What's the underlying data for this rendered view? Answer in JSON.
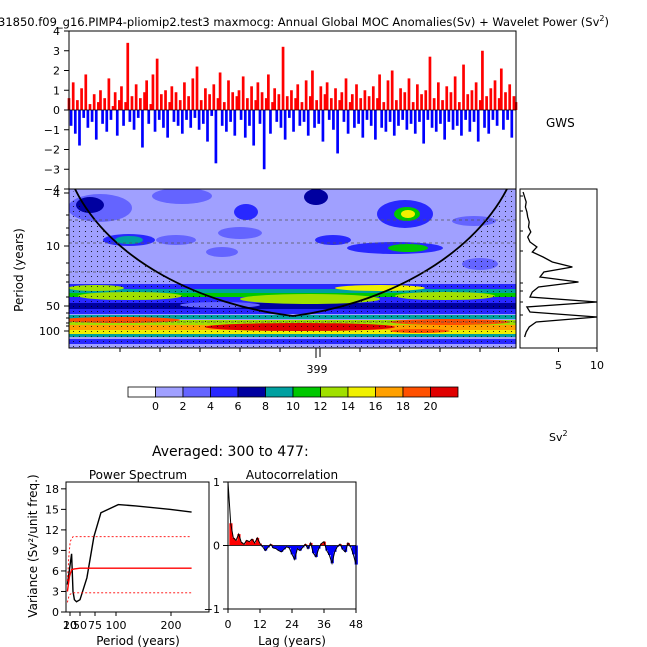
{
  "title": "31850.f09_g16.PIMP4-pliomip2.test3 maxmocg: Annual Global MOC Anomalies(Sv) + Wavelet Power (Sv",
  "title_sup": "2",
  "title_tail": ")",
  "gws_label": "GWS",
  "sv2_label": "Sv",
  "sv2_sup": "2",
  "averaged_label": "Averaged: 300 to 477:",
  "colors": {
    "positive": "#ff0000",
    "negative": "#0000ff"
  },
  "chart_data": [
    {
      "type": "area",
      "name": "timeseries",
      "ylim": [
        -4,
        4
      ],
      "yticks": [
        4,
        3,
        2,
        1,
        0,
        -1,
        -2,
        -3,
        -4
      ],
      "values": [
        0.6,
        -0.8,
        1.4,
        -1.2,
        0.5,
        -1.8,
        1.1,
        -0.4,
        1.8,
        -0.9,
        0.3,
        -0.6,
        0.8,
        -1.5,
        0.4,
        1.0,
        -0.7,
        0.6,
        -1.1,
        1.6,
        -0.5,
        0.2,
        0.9,
        -1.3,
        0.5,
        1.2,
        -0.8,
        0.4,
        3.4,
        -0.6,
        0.7,
        -1.0,
        1.3,
        -0.4,
        0.6,
        -1.9,
        0.9,
        1.5,
        -0.7,
        0.3,
        1.8,
        -1.1,
        2.6,
        -0.5,
        0.8,
        -0.9,
        1.0,
        -1.4,
        0.4,
        1.2,
        -0.6,
        0.9,
        -0.8,
        0.5,
        -1.2,
        1.4,
        -0.5,
        0.7,
        -0.9,
        1.6,
        -0.4,
        2.2,
        -1.0,
        0.5,
        -0.7,
        1.1,
        -1.6,
        0.8,
        -0.3,
        1.3,
        -2.7,
        0.6,
        1.9,
        -0.8,
        0.4,
        -1.1,
        1.5,
        -0.6,
        0.9,
        -1.3,
        0.7,
        1.0,
        -0.5,
        1.7,
        -1.4,
        0.6,
        -0.8,
        1.2,
        -1.8,
        0.5,
        1.4,
        -0.7,
        0.9,
        -3.0,
        0.6,
        1.8,
        -1.2,
        0.4,
        1.1,
        -0.6,
        0.8,
        -0.9,
        3.2,
        -1.5,
        0.7,
        -0.4,
        1.0,
        -1.1,
        0.6,
        1.3,
        -0.8,
        0.4,
        -0.6,
        1.5,
        -1.3,
        0.7,
        2.0,
        -0.9,
        0.5,
        -0.7,
        1.2,
        -1.6,
        0.8,
        1.4,
        -0.5,
        0.6,
        -1.0,
        1.1,
        -2.2,
        0.5,
        0.9,
        -0.6,
        1.6,
        -1.2,
        0.4,
        0.8,
        -0.9,
        1.3,
        -0.7,
        0.6,
        -1.4,
        1.0,
        -0.5,
        0.7,
        -0.8,
        1.2,
        -1.5,
        0.6,
        1.8,
        -0.9,
        0.4,
        -1.1,
        1.5,
        -0.6,
        2.0,
        -1.3,
        0.5,
        -0.8,
        1.1,
        -0.5,
        0.9,
        -1.0,
        1.6,
        -0.7,
        0.4,
        -1.2,
        1.3,
        -0.6,
        0.8,
        -1.7,
        1.0,
        -0.5,
        2.7,
        -0.9,
        0.6,
        -1.1,
        1.4,
        -0.7,
        0.5,
        -1.5,
        1.2,
        -0.6,
        0.9,
        -1.0,
        1.7,
        -0.8,
        0.4,
        -1.3,
        2.3,
        -0.5,
        0.8,
        -1.1,
        1.0,
        -0.6,
        1.4,
        -1.6,
        0.5,
        3.0,
        -0.9,
        0.7,
        -1.2,
        1.1,
        -0.5,
        1.5,
        -0.8,
        0.6,
        2.1,
        -1.0,
        0.9,
        -0.5,
        1.3,
        -1.4,
        0.7,
        0.4
      ]
    },
    {
      "type": "heatmap",
      "name": "wavelet_power",
      "x_tick_labels": [
        "399"
      ],
      "y_tick_labels": [
        "4",
        "10",
        "50",
        "100"
      ],
      "ylabel": "Period (years)",
      "yscale": "log",
      "colorbar_labels": [
        "0",
        "2",
        "4",
        "6",
        "8",
        "10",
        "12",
        "14",
        "16",
        "18",
        "20"
      ],
      "colorbar_colors": [
        "#ffffff",
        "#a0a0ff",
        "#6464ff",
        "#2828ff",
        "#0000a0",
        "#00a0a0",
        "#00c800",
        "#a0e000",
        "#f0f000",
        "#ffa000",
        "#ff5000",
        "#e00000"
      ]
    },
    {
      "type": "line",
      "name": "global_wavelet_spectrum",
      "x_tick_labels": [
        "5",
        "10"
      ],
      "xlim": [
        0,
        10
      ],
      "power": [
        0.4,
        0.6,
        0.8,
        0.7,
        0.9,
        1.0,
        1.2,
        1.1,
        1.4,
        1.0,
        1.3,
        2.2,
        1.6,
        3.0,
        4.2,
        6.8,
        3.1,
        2.6,
        7.6,
        2.4,
        1.6,
        1.3,
        10.0,
        0.9,
        1.3,
        10.0,
        2.1,
        1.2,
        0.8,
        0.6
      ]
    },
    {
      "type": "line",
      "name": "power_spectrum",
      "title": "Power Spectrum",
      "xlabel": "Period (years)",
      "ylabel": "Variance (Sv²/unit freq.)",
      "x_tick_labels": [
        "20",
        "10",
        "50",
        "75",
        "100",
        "200"
      ],
      "y_tick_labels": [
        "0",
        "3",
        "6",
        "9",
        "12",
        "15",
        "18"
      ],
      "ylim": [
        0,
        19
      ],
      "series": [
        {
          "x": [
            2,
            8,
            10,
            12,
            15,
            20,
            30,
            40,
            50,
            75,
            100,
            150,
            180
          ],
          "y": [
            4.0,
            8.5,
            3.0,
            1.8,
            1.5,
            1.8,
            5.0,
            11.0,
            14.5,
            15.7,
            15.5,
            15.0,
            14.6
          ]
        },
        {
          "x": [
            2,
            5,
            8,
            12,
            20,
            40,
            100,
            180
          ],
          "y": [
            3.0,
            5.2,
            6.2,
            6.3,
            6.4,
            6.4,
            6.4,
            6.4
          ]
        },
        {
          "x": [
            2,
            4,
            6,
            10,
            20,
            40,
            100,
            180
          ],
          "y": [
            4.5,
            8.0,
            10.3,
            11.0,
            11.0,
            11.0,
            11.0,
            11.0
          ]
        },
        {
          "x": [
            2,
            4,
            6,
            10,
            20,
            40,
            100,
            180
          ],
          "y": [
            1.4,
            2.2,
            2.6,
            2.8,
            2.8,
            2.8,
            2.8,
            2.8
          ]
        }
      ]
    },
    {
      "type": "area",
      "name": "autocorrelation",
      "title": "Autocorrelation",
      "xlabel": "Lag (years)",
      "x_tick_labels": [
        "0",
        "12",
        "24",
        "36",
        "48"
      ],
      "y_tick_labels": [
        "1",
        "0",
        "-1"
      ],
      "xlim": [
        0,
        48
      ],
      "ylim": [
        -1,
        1
      ],
      "values": [
        1.0,
        0.35,
        0.12,
        0.08,
        0.18,
        0.05,
        0.02,
        0.08,
        0.06,
        0.1,
        0.04,
        0.12,
        0.03,
        -0.02,
        -0.08,
        -0.03,
        0.02,
        -0.04,
        -0.05,
        -0.08,
        -0.1,
        -0.06,
        -0.02,
        -0.04,
        -0.14,
        -0.22,
        -0.05,
        -0.08,
        -0.03,
        0.02,
        -0.05,
        0.04,
        -0.12,
        -0.18,
        -0.05,
        0.03,
        0.06,
        -0.08,
        -0.15,
        -0.28,
        -0.1,
        -0.02,
        0.02,
        -0.06,
        -0.1,
        0.04,
        -0.02,
        -0.14,
        -0.3
      ]
    }
  ]
}
